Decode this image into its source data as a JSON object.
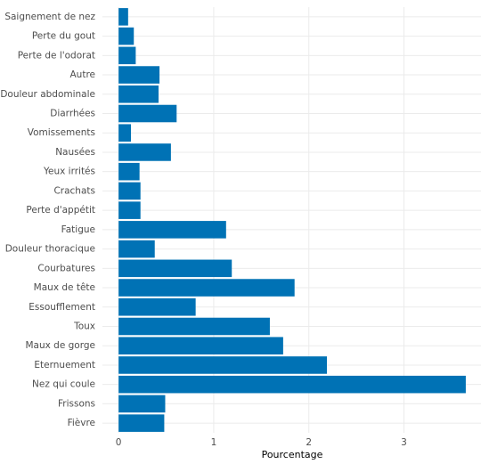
{
  "chart_data": {
    "type": "barh",
    "x_label": "Pourcentage",
    "categories": [
      "Saignement de nez",
      "Perte du gout",
      "Perte de l'odorat",
      "Autre",
      "Douleur abdominale",
      "Diarrhées",
      "Vomissements",
      "Nausées",
      "Yeux irrités",
      "Crachats",
      "Perte d'appétit",
      "Fatigue",
      "Douleur thoracique",
      "Courbatures",
      "Maux de tête",
      "Essoufflement",
      "Toux",
      "Maux de gorge",
      "Eternuement",
      "Nez qui coule",
      "Frissons",
      "Fièvre"
    ],
    "values": [
      0.1,
      0.16,
      0.18,
      0.43,
      0.42,
      0.61,
      0.13,
      0.55,
      0.22,
      0.23,
      0.23,
      1.13,
      0.38,
      1.19,
      1.85,
      0.81,
      1.59,
      1.73,
      2.19,
      3.65,
      0.49,
      0.48
    ],
    "color": "#0072b5",
    "xlim": [
      -0.17,
      3.81
    ],
    "xticks": [
      0,
      1,
      2,
      3
    ],
    "grid": true
  }
}
